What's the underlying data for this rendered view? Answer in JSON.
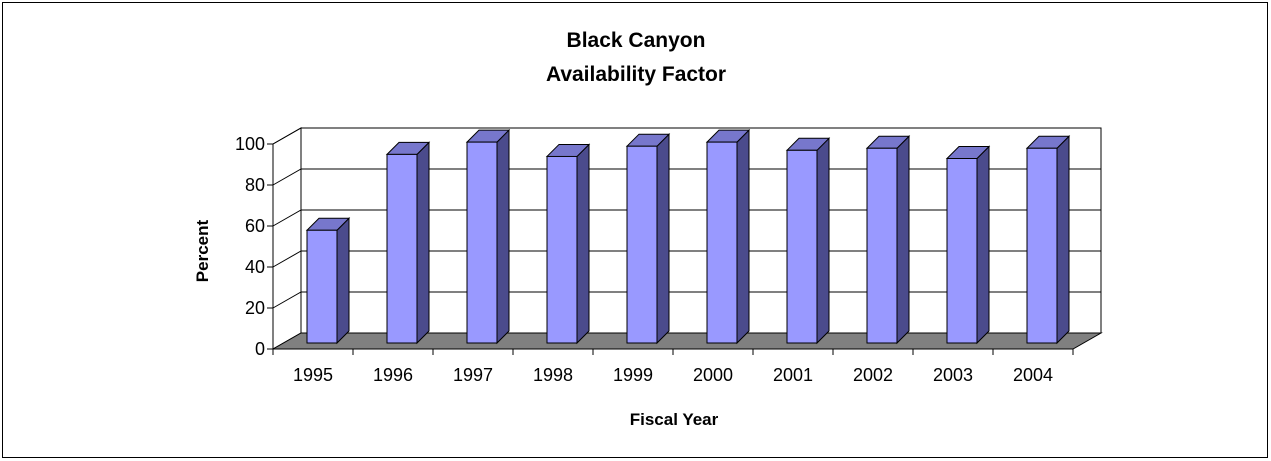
{
  "chart_data": {
    "type": "bar",
    "title_lines": [
      "Black Canyon",
      "Availability Factor"
    ],
    "xlabel": "Fiscal Year",
    "ylabel": "Percent",
    "categories": [
      "1995",
      "1996",
      "1997",
      "1998",
      "1999",
      "2000",
      "2001",
      "2002",
      "2003",
      "2004"
    ],
    "values": [
      55,
      92,
      98,
      91,
      96,
      98,
      94,
      95,
      90,
      95
    ],
    "ylim": [
      0,
      100
    ],
    "yticks": [
      "0",
      "20",
      "40",
      "60",
      "80",
      "100"
    ],
    "grid": true,
    "legend": "none",
    "style": "3d-column",
    "colors": {
      "bar_front": "#9999ff",
      "bar_side": "#4b4b8c",
      "bar_top": "#7777cc",
      "floor": "#808080"
    }
  }
}
